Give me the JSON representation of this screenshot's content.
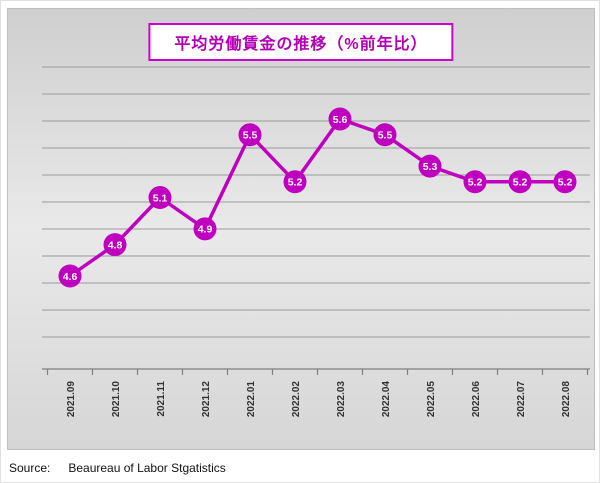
{
  "title_box": {
    "title": "平均労働賃金の推移（%前年比）"
  },
  "source": {
    "label": "Source:",
    "text": "Beaureau of Labor Stgatistics"
  },
  "chart_data": {
    "type": "line",
    "title": "平均労働賃金の推移（%前年比）",
    "categories": [
      "2021.09",
      "2021.10",
      "2021.11",
      "2021.12",
      "2022.01",
      "2022.02",
      "2022.03",
      "2022.04",
      "2022.05",
      "2022.06",
      "2022.07",
      "2022.08"
    ],
    "values": [
      4.6,
      4.8,
      5.1,
      4.9,
      5.5,
      5.2,
      5.6,
      5.5,
      5.3,
      5.2,
      5.2,
      5.2
    ],
    "xlabel": "",
    "ylabel": "",
    "ylim": [
      4.0,
      6.0
    ],
    "grid": true,
    "legend": "none",
    "colors": {
      "line": "#bf00bf",
      "marker": "#bf00bf",
      "marker_label": "#ffffff",
      "grid_line": "#9a9a9a",
      "axis_line": "#808080",
      "tick_label": "#333333"
    }
  }
}
